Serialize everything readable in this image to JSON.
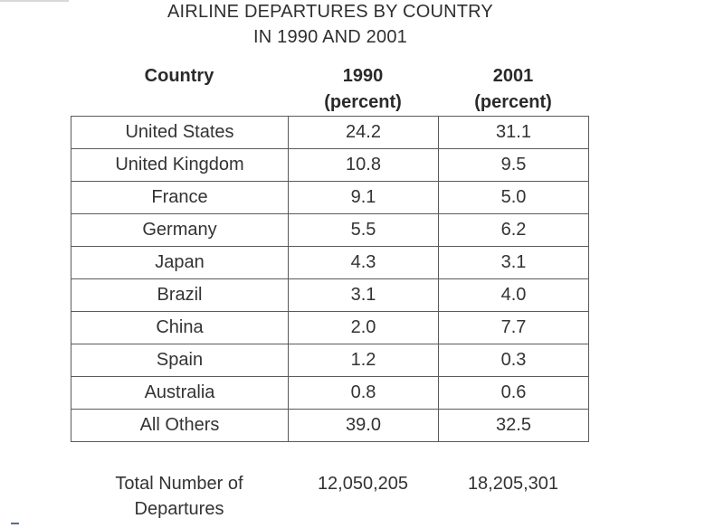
{
  "chart_data": {
    "type": "table",
    "title": "AIRLINE DEPARTURES BY COUNTRY",
    "subtitle": "IN 1990 AND 2001",
    "columns": [
      {
        "line1": "Country",
        "line2": ""
      },
      {
        "line1": "1990",
        "line2": "(percent)"
      },
      {
        "line1": "2001",
        "line2": "(percent)"
      }
    ],
    "rows": [
      {
        "country": "United States",
        "y1990": "24.2",
        "y2001": "31.1"
      },
      {
        "country": "United Kingdom",
        "y1990": "10.8",
        "y2001": "9.5"
      },
      {
        "country": "France",
        "y1990": "9.1",
        "y2001": "5.0"
      },
      {
        "country": "Germany",
        "y1990": "5.5",
        "y2001": "6.2"
      },
      {
        "country": "Japan",
        "y1990": "4.3",
        "y2001": "3.1"
      },
      {
        "country": "Brazil",
        "y1990": "3.1",
        "y2001": "4.0"
      },
      {
        "country": "China",
        "y1990": "2.0",
        "y2001": "7.7"
      },
      {
        "country": "Spain",
        "y1990": "1.2",
        "y2001": "0.3"
      },
      {
        "country": "Australia",
        "y1990": "0.8",
        "y2001": "0.6"
      },
      {
        "country": "All Others",
        "y1990": "39.0",
        "y2001": "32.5"
      }
    ],
    "total": {
      "label_line1": "Total Number of",
      "label_line2": "Departures",
      "y1990": "12,050,205",
      "y2001": "18,205,301"
    }
  }
}
